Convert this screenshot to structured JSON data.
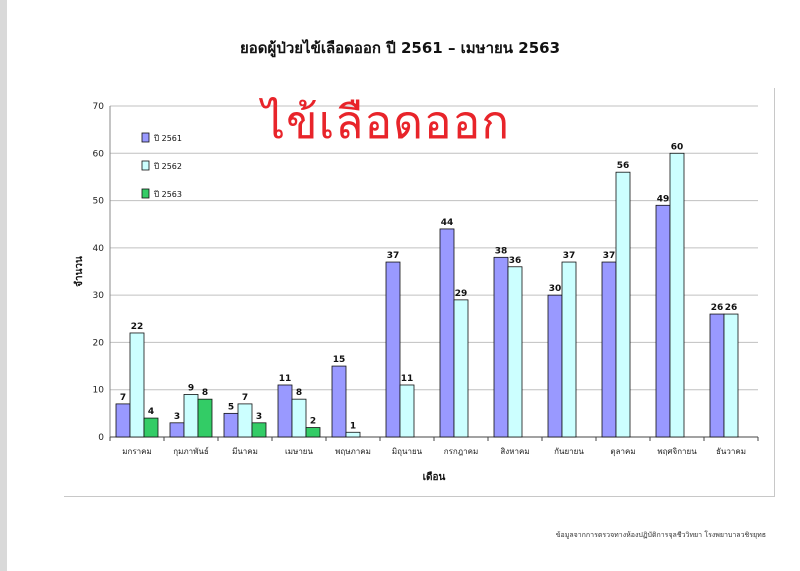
{
  "title": "ยอดผู้ป่วยไข้เลือดออก ปี 2561 – เมษายน 2563",
  "overlay_title": "ไข้เลือดออก",
  "source_note": "ข้อมูลจากการตรวจทางห้องปฏิบัติการจุลชีววิทยา โรงพยาบาลวชิรยุทธ",
  "colors": {
    "s2561": "#9999ff",
    "s2562": "#ccffff",
    "s2563": "#33cc66",
    "grid": "#c0c0c0",
    "overlay": "#e8242a"
  },
  "chart_data": {
    "type": "bar",
    "title": "ยอดผู้ป่วยไข้เลือดออก ปี 2561 – เมษายน 2563",
    "xlabel": "เดือน",
    "ylabel": "จำนวน",
    "ylim": [
      0,
      70
    ],
    "yticks": [
      0,
      10,
      20,
      30,
      40,
      50,
      60,
      70
    ],
    "grid": true,
    "legend_position": "top-left",
    "categories": [
      "มกราคม",
      "กุมภาพันธ์",
      "มีนาคม",
      "เมษายน",
      "พฤษภาคม",
      "มิถุนายน",
      "กรกฎาคม",
      "สิงหาคม",
      "กันยายน",
      "ตุลาคม",
      "พฤศจิกายน",
      "ธันวาคม"
    ],
    "series": [
      {
        "name": "ปี 2561",
        "values": [
          7,
          3,
          5,
          11,
          15,
          37,
          44,
          38,
          30,
          37,
          49,
          26
        ]
      },
      {
        "name": "ปี 2562",
        "values": [
          22,
          9,
          7,
          8,
          1,
          11,
          29,
          36,
          37,
          56,
          60,
          26
        ]
      },
      {
        "name": "ปี 2563",
        "values": [
          4,
          8,
          3,
          2,
          null,
          null,
          null,
          null,
          null,
          null,
          null,
          null
        ]
      }
    ]
  }
}
